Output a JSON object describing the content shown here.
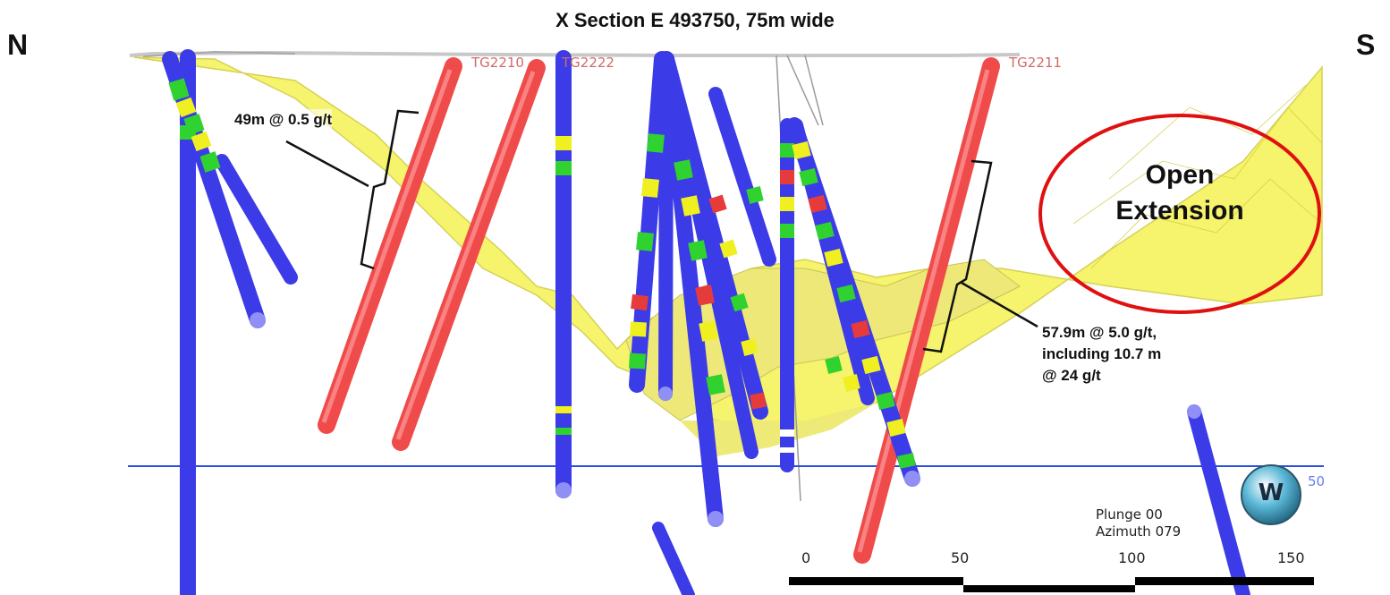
{
  "title": "X Section E 493750, 75m wide",
  "compass": {
    "left": "N",
    "right": "S"
  },
  "hole_labels": [
    "TG2210",
    "TG2222",
    "TG2211"
  ],
  "intercepts": {
    "upper": "49m @ 0.5 g/t",
    "lower_line1": "57.9m @ 5.0 g/t,",
    "lower_line2": "including 10.7 m",
    "lower_line3": "@ 24 g/t"
  },
  "callout": {
    "line1": "Open",
    "line2": "Extension"
  },
  "view": {
    "plunge": "Plunge 00",
    "azimuth": "Azimuth 079"
  },
  "level_label": "50",
  "scale": {
    "ticks": [
      "0",
      "50",
      "100",
      "150"
    ]
  },
  "logo": "W",
  "colors": {
    "mineralized_zone": "#f3ef3c",
    "planned_hole": "#ef4b4b",
    "low_grade": "#3b3be8",
    "mid_grade_green": "#2fd22f",
    "mid_grade_yellow": "#f0f020",
    "high_grade": "#e63b3b",
    "callout_circle": "#e01010",
    "reference_line": "#2b4fe0"
  }
}
